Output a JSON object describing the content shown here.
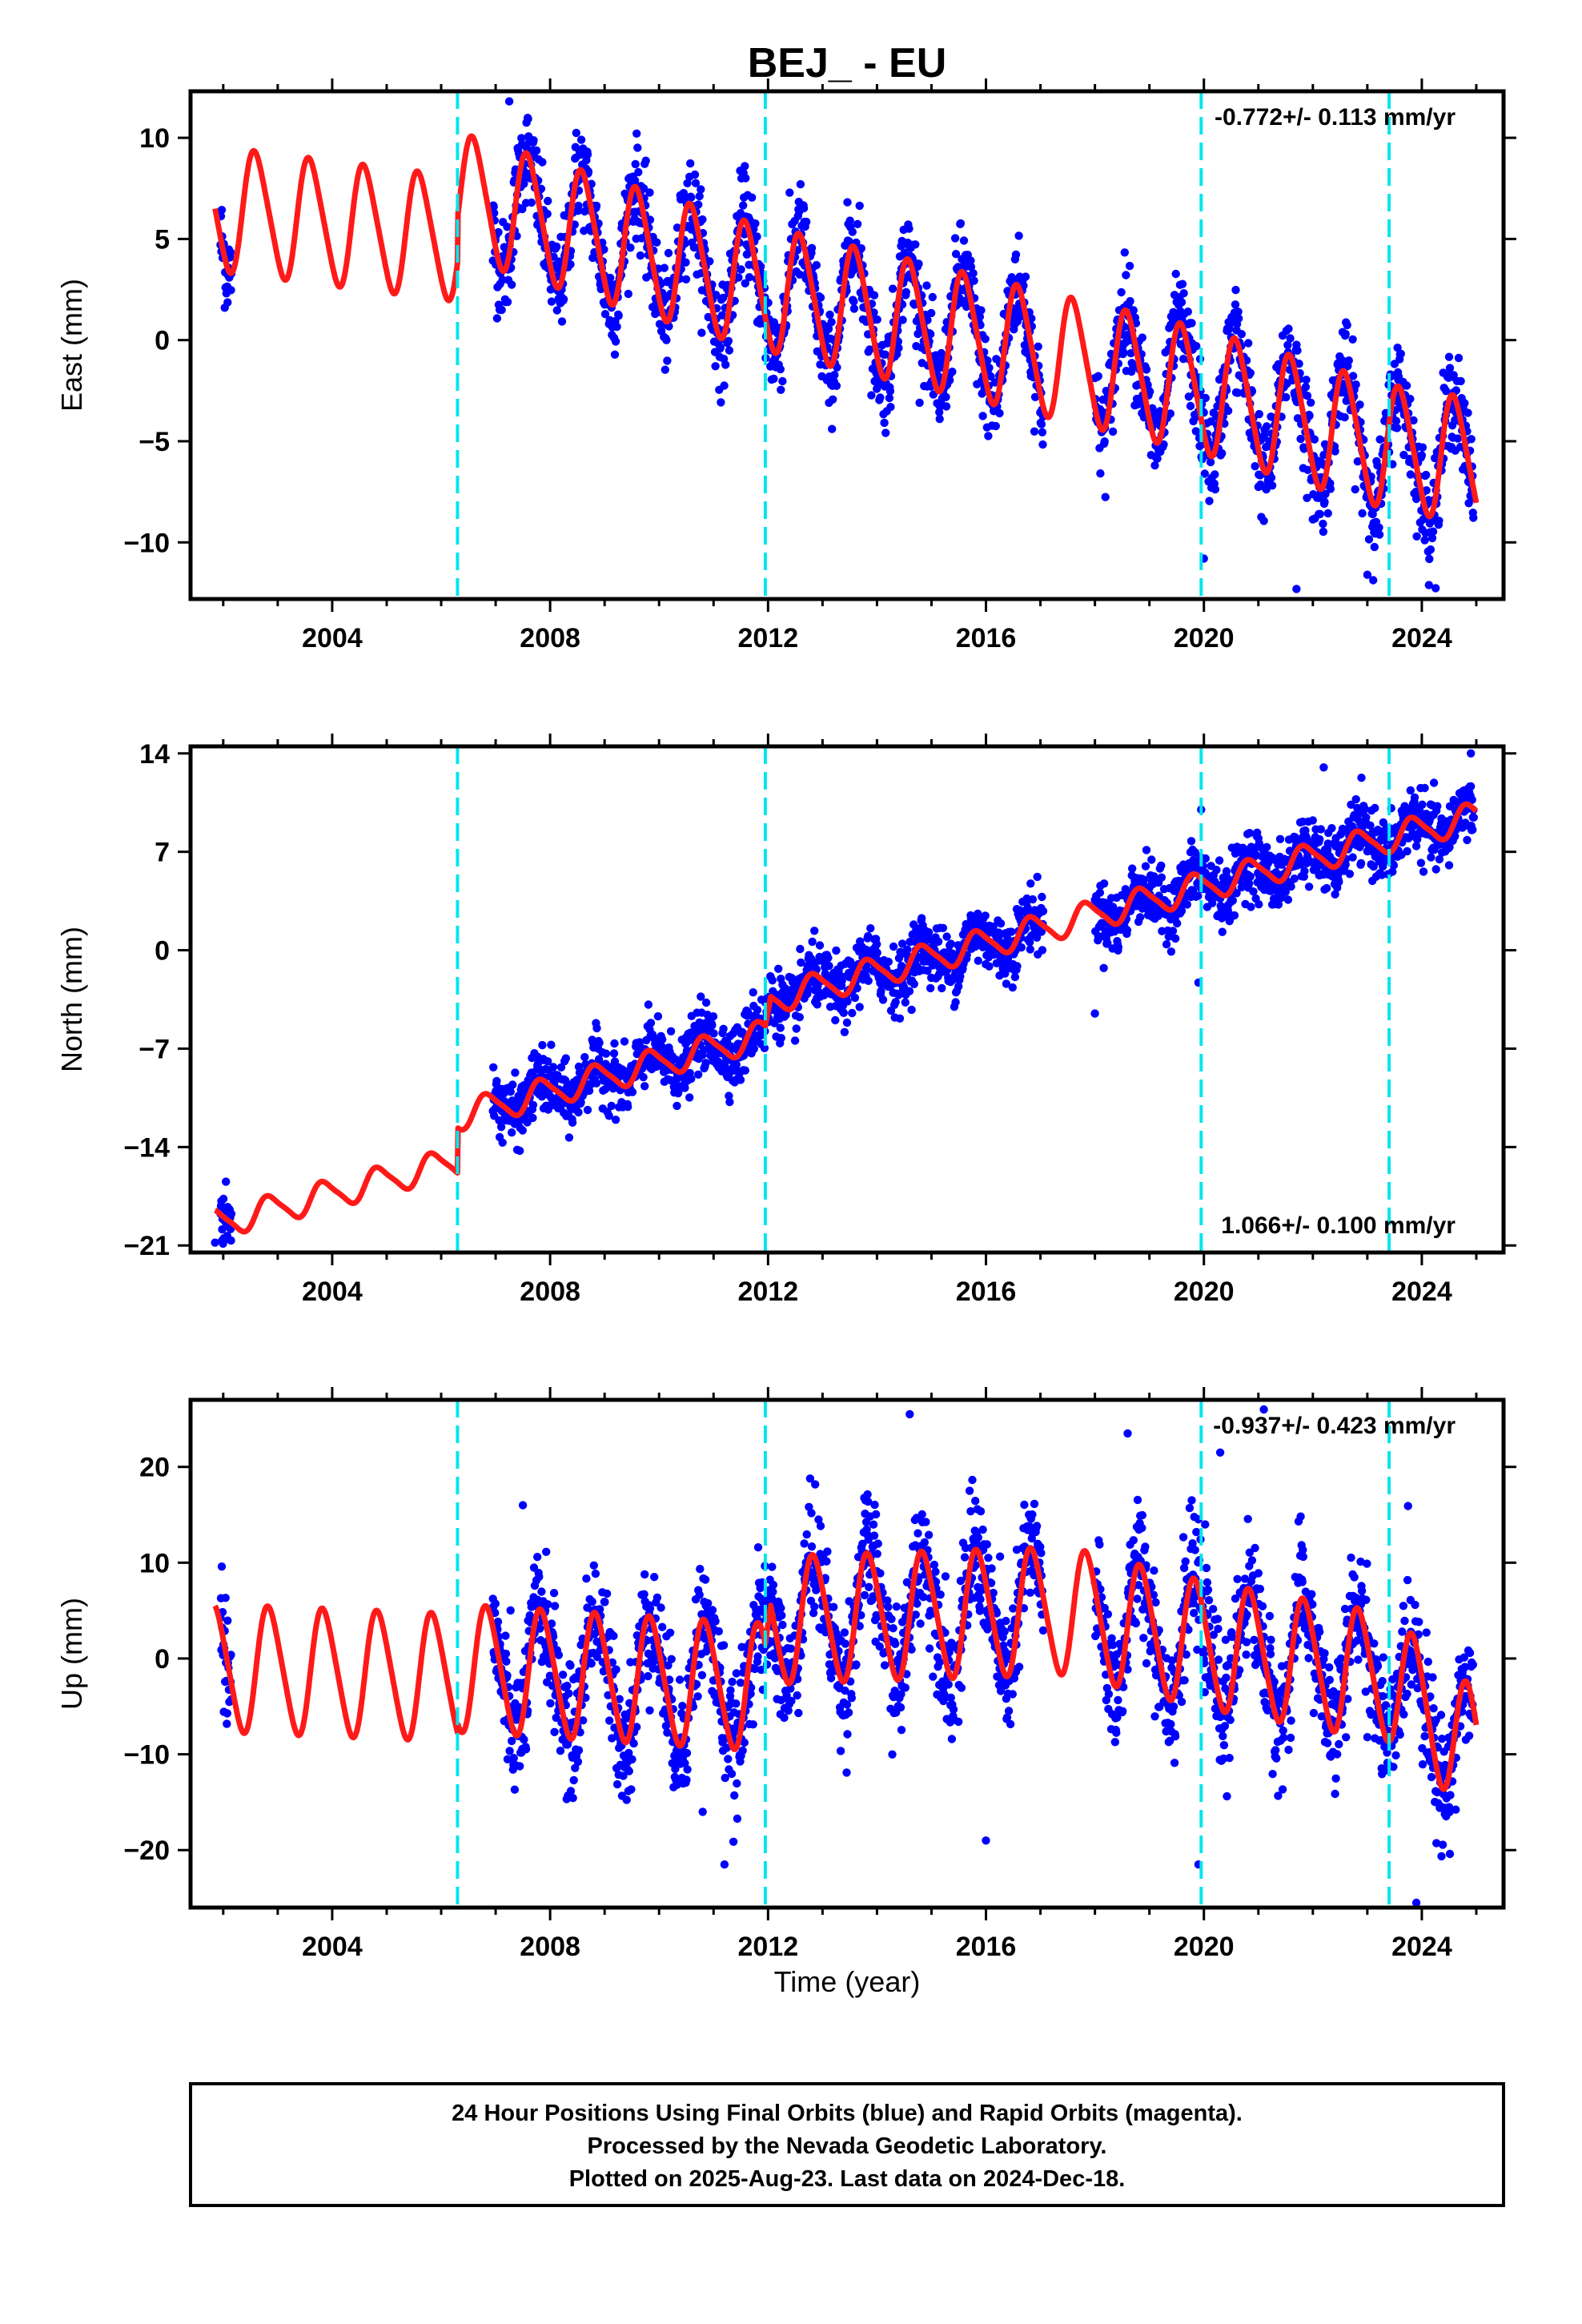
{
  "title": "BEJ_ - EU",
  "xlabel": "Time (year)",
  "footer": {
    "line1": "24 Hour Positions Using Final Orbits (blue) and Rapid Orbits (magenta).",
    "line2": "Processed by the Nevada Geodetic Laboratory.",
    "line3": "Plotted on 2025-Aug-23. Last data on 2024-Dec-18."
  },
  "colors": {
    "points": "#0000ff",
    "model": "#ff1a1a",
    "breaks": "#00e5ee",
    "frame": "#000000"
  },
  "chart_data": [
    {
      "type": "scatter",
      "component": "east",
      "ylabel": "East (mm)",
      "rate_label": "-0.772+/- 0.113 mm/yr",
      "xlim": [
        2001.4,
        2025.5
      ],
      "ylim": [
        -12.8,
        12.3
      ],
      "xticks": [
        2004,
        2008,
        2012,
        2016,
        2020,
        2024
      ],
      "yticks": [
        10,
        5,
        0,
        -5,
        -10
      ],
      "ytick_labels": [
        "10",
        "5",
        "0",
        "−5",
        "−10"
      ],
      "break_epochs": [
        2006.3,
        2011.95,
        2019.95,
        2023.4
      ],
      "model": {
        "trend": [
          [
            2001.85,
            6.5
          ],
          [
            2006.3,
            5.0
          ],
          [
            2006.3,
            7.2
          ],
          [
            2011.95,
            2.5
          ],
          [
            2012.05,
            2.5
          ],
          [
            2019.95,
            -2.5
          ],
          [
            2023.4,
            -5.3
          ],
          [
            2025.0,
            -6.0
          ]
        ],
        "annual_amplitude": 3.0,
        "annual_phase": 0.35,
        "semiannual_amplitude": 0.4
      },
      "observations": {
        "segments": [
          [
            2001.95,
            2002.15
          ],
          [
            2006.95,
            2017.05
          ],
          [
            2018.0,
            2024.96
          ]
        ],
        "scatter_mm": 1.2,
        "outliers": [
          [
            2007.25,
            11.8
          ],
          [
            2020.0,
            -10.8
          ],
          [
            2021.7,
            -12.3
          ],
          [
            2023.0,
            -11.6
          ]
        ]
      }
    },
    {
      "type": "scatter",
      "component": "north",
      "ylabel": "North (mm)",
      "rate_label": "1.066+/- 0.100 mm/yr",
      "xlim": [
        2001.4,
        2025.5
      ],
      "ylim": [
        -21.5,
        14.5
      ],
      "xticks": [
        2004,
        2008,
        2012,
        2016,
        2020,
        2024
      ],
      "yticks": [
        14,
        7,
        0,
        -7,
        -14,
        -21
      ],
      "ytick_labels": [
        "14",
        "7",
        "0",
        "−7",
        "−14",
        "−21"
      ],
      "break_epochs": [
        2006.3,
        2011.95,
        2019.95,
        2023.4
      ],
      "model": {
        "trend": [
          [
            2001.85,
            -19.5
          ],
          [
            2006.3,
            -15.0
          ],
          [
            2006.3,
            -11.8
          ],
          [
            2011.95,
            -6.0
          ],
          [
            2012.05,
            -3.5
          ],
          [
            2019.95,
            4.5
          ],
          [
            2023.4,
            8.0
          ],
          [
            2025.0,
            9.5
          ]
        ],
        "annual_amplitude": 1.0,
        "annual_phase": 0.6,
        "semiannual_amplitude": 0.2
      },
      "observations": {
        "segments": [
          [
            2001.95,
            2002.15
          ],
          [
            2006.95,
            2017.05
          ],
          [
            2018.0,
            2024.96
          ]
        ],
        "scatter_mm": 1.1,
        "outliers": [
          [
            2018.0,
            -4.5
          ],
          [
            2019.9,
            -2.3
          ],
          [
            2019.95,
            10.0
          ],
          [
            2022.2,
            13.0
          ],
          [
            2024.9,
            14.0
          ],
          [
            2001.85,
            -20.8
          ]
        ]
      }
    },
    {
      "type": "scatter",
      "component": "up",
      "ylabel": "Up (mm)",
      "rate_label": "-0.937+/- 0.423 mm/yr",
      "xlim": [
        2001.4,
        2025.5
      ],
      "ylim": [
        -26.0,
        27.0
      ],
      "xticks": [
        2004,
        2008,
        2012,
        2016,
        2020,
        2024
      ],
      "yticks": [
        20,
        10,
        0,
        -10,
        -20
      ],
      "ytick_labels": [
        "20",
        "10",
        "0",
        "−10",
        "−20"
      ],
      "break_epochs": [
        2006.3,
        2011.95,
        2019.95,
        2023.4
      ],
      "model": {
        "trend": [
          [
            2001.85,
            -1.0
          ],
          [
            2006.3,
            -2.0
          ],
          [
            2006.3,
            -1.0
          ],
          [
            2011.95,
            -3.0
          ],
          [
            2012.05,
            4.0
          ],
          [
            2017.5,
            5.0
          ],
          [
            2019.95,
            1.5
          ],
          [
            2023.4,
            -2.0
          ],
          [
            2025.0,
            -10.0
          ]
        ],
        "annual_amplitude": 6.5,
        "annual_phase": 0.6,
        "semiannual_amplitude": 0.8
      },
      "observations": {
        "segments": [
          [
            2001.95,
            2002.15
          ],
          [
            2006.95,
            2017.05
          ],
          [
            2018.0,
            2024.96
          ]
        ],
        "scatter_mm": 3.2,
        "outliers": [
          [
            2007.5,
            16.0
          ],
          [
            2010.8,
            -16.0
          ],
          [
            2011.2,
            -21.5
          ],
          [
            2014.6,
            25.5
          ],
          [
            2015.7,
            17.5
          ],
          [
            2016.0,
            -19.0
          ],
          [
            2018.6,
            23.5
          ],
          [
            2019.9,
            -21.5
          ],
          [
            2020.3,
            21.5
          ],
          [
            2021.1,
            26.0
          ],
          [
            2023.9,
            -25.5
          ]
        ]
      }
    }
  ]
}
